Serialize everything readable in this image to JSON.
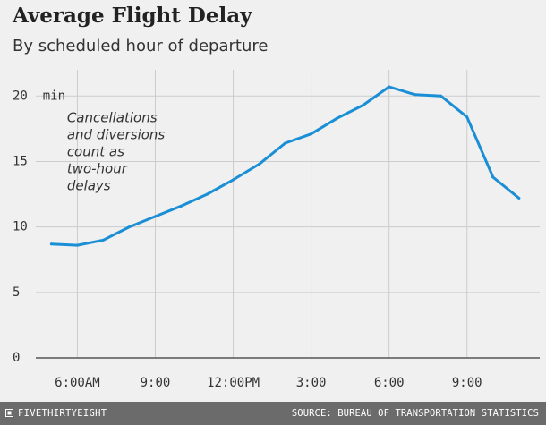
{
  "header": {
    "title": "Average Flight Delay",
    "subtitle": "By scheduled hour of departure"
  },
  "footer": {
    "brand": "FIVETHIRTYEIGHT",
    "source": "SOURCE: BUREAU OF TRANSPORTATION STATISTICS"
  },
  "colors": {
    "line": "#1a8fd6",
    "grid": "#cccccc",
    "baseline": "#555555",
    "background": "#f0f0f0",
    "footer": "#6b6b6b"
  },
  "chart_data": {
    "type": "line",
    "title": "Average Flight Delay",
    "subtitle": "By scheduled hour of departure",
    "xlabel": "",
    "ylabel": "",
    "x": [
      5,
      6,
      7,
      8,
      9,
      10,
      11,
      12,
      13,
      14,
      15,
      16,
      17,
      18,
      19,
      20,
      21,
      22,
      23
    ],
    "series": [
      {
        "name": "Average delay (min)",
        "values": [
          8.7,
          8.6,
          9.0,
          10.0,
          10.8,
          11.6,
          12.5,
          13.6,
          14.8,
          16.4,
          17.1,
          18.3,
          19.3,
          20.7,
          20.1,
          20.0,
          18.4,
          13.8,
          12.2
        ]
      }
    ],
    "xlim": [
      4.4,
      23.8
    ],
    "ylim": [
      0,
      22
    ],
    "yticks": [
      {
        "value": 0,
        "label": "0"
      },
      {
        "value": 5,
        "label": "5"
      },
      {
        "value": 10,
        "label": "10"
      },
      {
        "value": 15,
        "label": "15"
      },
      {
        "value": 20,
        "label": "20  min"
      }
    ],
    "xticks": [
      {
        "value": 6,
        "label": "6:00AM"
      },
      {
        "value": 9,
        "label": "9:00"
      },
      {
        "value": 12,
        "label": "12:00PM"
      },
      {
        "value": 15,
        "label": "3:00"
      },
      {
        "value": 18,
        "label": "6:00"
      },
      {
        "value": 21,
        "label": "9:00"
      }
    ],
    "annotation": {
      "lines": [
        "Cancellations",
        "and diversions",
        "count as",
        "two-hour",
        "delays"
      ],
      "x": 5.6,
      "y": 18.0
    },
    "grid": true
  }
}
